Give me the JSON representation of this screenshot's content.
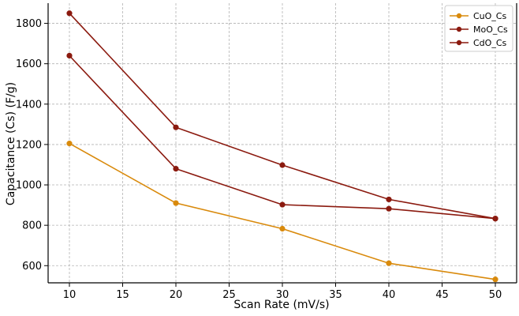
{
  "chart_data": {
    "type": "line",
    "xlabel": "Scan Rate (mV/s)",
    "ylabel": "Capacitance (Cs) (F/g)",
    "x": [
      10,
      20,
      30,
      40,
      50
    ],
    "xlim": [
      8,
      52
    ],
    "ylim": [
      515,
      1900
    ],
    "x_ticks": [
      "10",
      "15",
      "20",
      "25",
      "30",
      "35",
      "40",
      "45",
      "50"
    ],
    "y_ticks": [
      "600",
      "800",
      "1000",
      "1200",
      "1400",
      "1600",
      "1800"
    ],
    "grid": true,
    "legend_position": "top-right",
    "series": [
      {
        "name": "CuO_Cs",
        "color": "#d98a0c",
        "values": [
          1205,
          910,
          783,
          612,
          532
        ]
      },
      {
        "name": "MoO_Cs",
        "color": "#8b1a0f",
        "values": [
          1850,
          1285,
          1098,
          928,
          833
        ]
      },
      {
        "name": "CdO_Cs",
        "color": "#8b1a0f",
        "values": [
          1640,
          1080,
          902,
          882,
          833
        ]
      }
    ]
  }
}
